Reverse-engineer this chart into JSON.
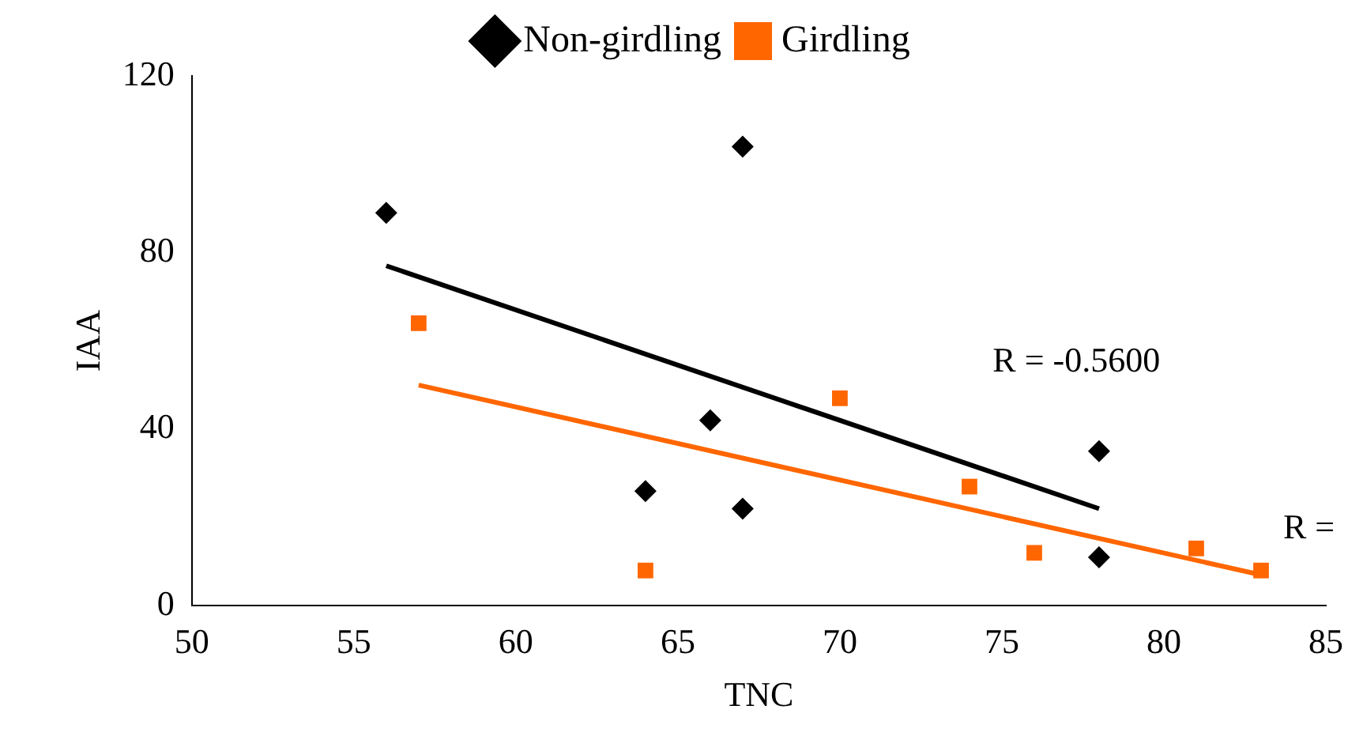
{
  "chart_data": {
    "type": "scatter",
    "xlabel": "TNC",
    "ylabel": "IAA",
    "xlim": [
      50,
      85
    ],
    "xticks": [
      50,
      55,
      60,
      65,
      70,
      75,
      80,
      85
    ],
    "ylim": [
      0,
      120
    ],
    "yticks": [
      0,
      40,
      80,
      120
    ],
    "grid": false,
    "legend": "top",
    "series": [
      {
        "name": "Non-girdling",
        "color": "#000000",
        "marker": "diamond",
        "x": [
          56,
          67,
          66,
          64,
          67,
          78,
          78
        ],
        "values": [
          89,
          104,
          42,
          26,
          22,
          35,
          11
        ]
      },
      {
        "name": "Girdling",
        "color": "#ff6600",
        "marker": "square",
        "x": [
          57,
          64,
          70,
          74,
          76,
          81,
          83
        ],
        "values": [
          64,
          8,
          47,
          27,
          12,
          13,
          8
        ]
      },
      {
        "type": "line",
        "color": "#000000",
        "marker": "none",
        "x": [
          56,
          78
        ],
        "values": [
          77,
          22
        ]
      },
      {
        "type": "line",
        "color": "#ff6600",
        "marker": "none",
        "x": [
          57,
          83
        ],
        "values": [
          50,
          7
        ]
      }
    ],
    "annotations": [
      "R = -0.5600",
      "R ="
    ]
  }
}
